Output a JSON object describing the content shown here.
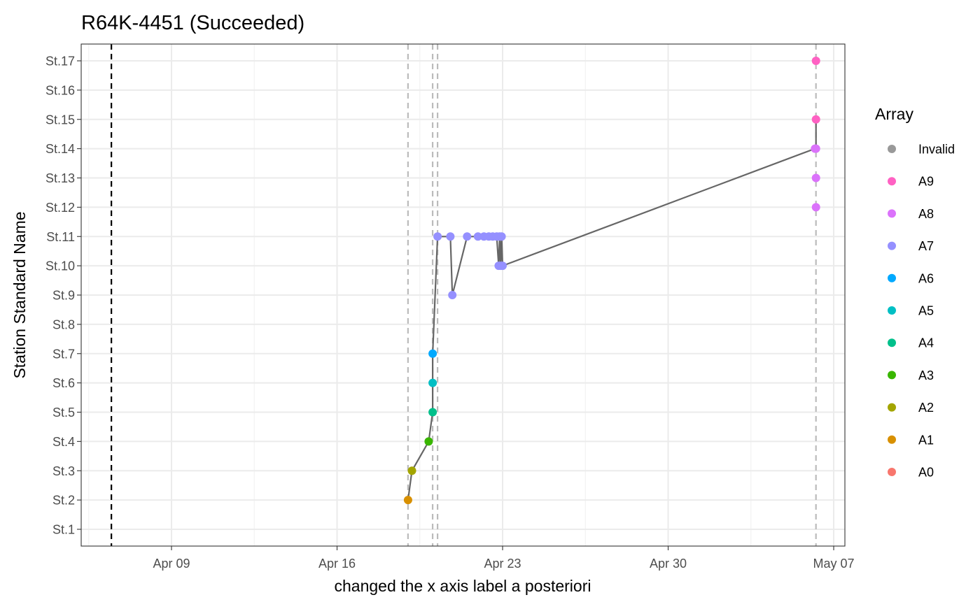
{
  "chart_data": {
    "type": "scatter",
    "title": "R64K-4451 (Succeeded)",
    "xlabel": "changed the x axis label a posteriori",
    "ylabel": "Station Standard Name",
    "x_type": "date",
    "x_ticks": [
      "2024-04-09",
      "2024-04-16",
      "2024-04-23",
      "2024-04-30",
      "2024-05-07"
    ],
    "x_tick_labels": [
      "Apr 09",
      "Apr 16",
      "Apr 23",
      "Apr 30",
      "May 07"
    ],
    "xlim": [
      "2024-04-05T02:00",
      "2024-05-07T12:00"
    ],
    "y_categories": [
      "St.1",
      "St.2",
      "St.3",
      "St.4",
      "St.5",
      "St.6",
      "St.7",
      "St.8",
      "St.9",
      "St.10",
      "St.11",
      "St.12",
      "St.13",
      "St.14",
      "St.15",
      "St.16",
      "St.17"
    ],
    "grid": true,
    "legend": {
      "title": "Array",
      "position": "right",
      "entries": [
        {
          "name": "Invalid",
          "color": "#999999"
        },
        {
          "name": "A9",
          "color": "#FF61C3"
        },
        {
          "name": "A8",
          "color": "#DB72FB"
        },
        {
          "name": "A7",
          "color": "#9590FF"
        },
        {
          "name": "A6",
          "color": "#00A9FF"
        },
        {
          "name": "A5",
          "color": "#00BFC4"
        },
        {
          "name": "A4",
          "color": "#00C08B"
        },
        {
          "name": "A3",
          "color": "#39B600"
        },
        {
          "name": "A2",
          "color": "#A3A500"
        },
        {
          "name": "A1",
          "color": "#D89000"
        },
        {
          "name": "A0",
          "color": "#F8766D"
        }
      ]
    },
    "reference_lines": [
      {
        "x": "2024-04-06T11:00",
        "style": "dashed",
        "color": "#000000"
      },
      {
        "x": "2024-04-19T00:00",
        "style": "dashed",
        "color": "#BBBBBB"
      },
      {
        "x": "2024-04-20T01:00",
        "style": "dashed",
        "color": "#BBBBBB"
      },
      {
        "x": "2024-04-20T06:00",
        "style": "dashed",
        "color": "#BBBBBB"
      },
      {
        "x": "2024-05-06T06:00",
        "style": "dashed",
        "color": "#BBBBBB"
      }
    ],
    "line_color": "#666666",
    "points": [
      {
        "x": "2024-04-19T00:00",
        "y": "St.2",
        "array": "A1"
      },
      {
        "x": "2024-04-19T04:00",
        "y": "St.3",
        "array": "A2"
      },
      {
        "x": "2024-04-19T21:00",
        "y": "St.4",
        "array": "A3"
      },
      {
        "x": "2024-04-20T01:00",
        "y": "St.5",
        "array": "A4"
      },
      {
        "x": "2024-04-20T01:00",
        "y": "St.6",
        "array": "A5"
      },
      {
        "x": "2024-04-20T01:00",
        "y": "St.7",
        "array": "A6"
      },
      {
        "x": "2024-04-20T06:00",
        "y": "St.11",
        "array": "A7"
      },
      {
        "x": "2024-04-20T19:00",
        "y": "St.11",
        "array": "A7"
      },
      {
        "x": "2024-04-20T21:00",
        "y": "St.9",
        "array": "A7"
      },
      {
        "x": "2024-04-21T12:00",
        "y": "St.11",
        "array": "A7"
      },
      {
        "x": "2024-04-21T23:00",
        "y": "St.11",
        "array": "A7"
      },
      {
        "x": "2024-04-22T05:00",
        "y": "St.11",
        "array": "A7"
      },
      {
        "x": "2024-04-22T10:00",
        "y": "St.11",
        "array": "A7"
      },
      {
        "x": "2024-04-22T14:00",
        "y": "St.11",
        "array": "A7"
      },
      {
        "x": "2024-04-22T18:00",
        "y": "St.11",
        "array": "A7"
      },
      {
        "x": "2024-04-22T20:00",
        "y": "St.10",
        "array": "A7"
      },
      {
        "x": "2024-04-22T21:00",
        "y": "St.11",
        "array": "A7"
      },
      {
        "x": "2024-04-22T22:00",
        "y": "St.10",
        "array": "A7"
      },
      {
        "x": "2024-04-22T23:00",
        "y": "St.11",
        "array": "A7"
      },
      {
        "x": "2024-04-23T00:00",
        "y": "St.10",
        "array": "A7"
      },
      {
        "x": "2024-05-06T05:00",
        "y": "St.14",
        "array": "A8"
      },
      {
        "x": "2024-05-06T06:00",
        "y": "St.14",
        "array": "A8"
      },
      {
        "x": "2024-05-06T06:00",
        "y": "St.15",
        "array": "A9"
      },
      {
        "x": "2024-05-06T06:00",
        "y": "St.12",
        "array": "A8"
      },
      {
        "x": "2024-05-06T06:00",
        "y": "St.13",
        "array": "A8"
      },
      {
        "x": "2024-05-06T06:00",
        "y": "St.17",
        "array": "A9"
      }
    ],
    "path_order": [
      0,
      1,
      2,
      3,
      4,
      5,
      6,
      7,
      8,
      9,
      10,
      11,
      12,
      13,
      14,
      15,
      16,
      17,
      18,
      19,
      20,
      21,
      22
    ]
  }
}
